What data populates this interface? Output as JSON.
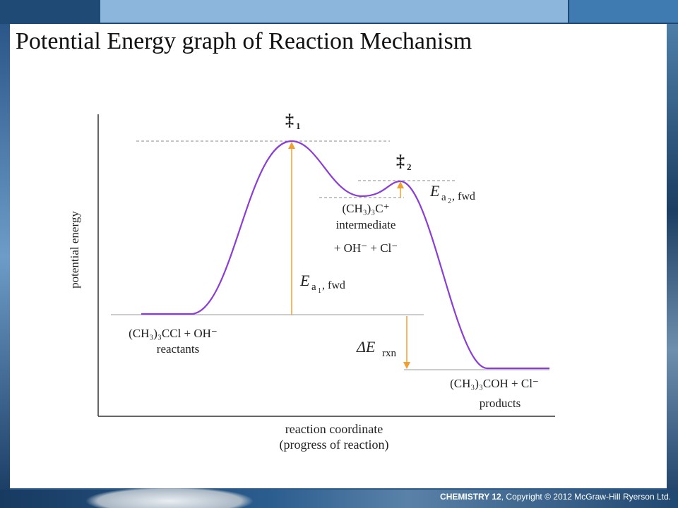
{
  "slide": {
    "title": "Potential Energy graph of Reaction Mechanism"
  },
  "diagram": {
    "y_axis_label": "potential energy",
    "x_axis_label_line1": "reaction coordinate",
    "x_axis_label_line2": "(progress of reaction)",
    "transition_state_1": {
      "symbol": "‡",
      "subscript": "1"
    },
    "transition_state_2": {
      "symbol": "‡",
      "subscript": "2"
    },
    "reactants": {
      "formula": "(CH₃)₃CCl  +  OH⁻",
      "label": "reactants"
    },
    "intermediate": {
      "formula": "(CH₃)₃C⁺",
      "label": "intermediate",
      "extra": "+ OH⁻ + Cl⁻"
    },
    "products": {
      "formula": "(CH₃)₃COH + Cl⁻",
      "label": "products"
    },
    "ea1": {
      "main": "E",
      "sub": "a",
      "subsub": "1",
      "suffix": ", fwd"
    },
    "ea2": {
      "main": "E",
      "sub": "a",
      "subsub": "2",
      "suffix": ", fwd"
    },
    "delta_e": {
      "main": "ΔE",
      "sub": "rxn"
    },
    "colors": {
      "curve": "#8a3ed6",
      "arrow": "#f0a030",
      "dashed": "#888888",
      "axis": "#333333"
    }
  },
  "footer": {
    "brand": "CHEMISTRY 12",
    "copyright": ", Copyright © 2012 McGraw-Hill Ryerson Ltd."
  }
}
